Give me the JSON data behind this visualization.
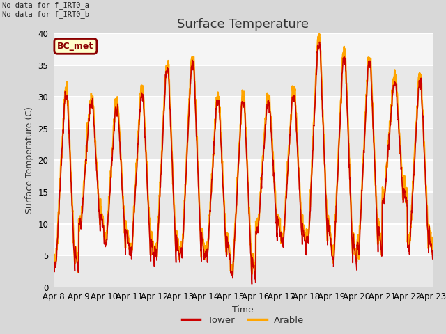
{
  "title": "Surface Temperature",
  "ylabel": "Surface Temperature (C)",
  "xlabel": "Time",
  "text_top_left": "No data for f_IRT0_a\nNo data for f_IRT0_b",
  "legend_label_box": "BC_met",
  "legend_entries": [
    {
      "label": "Tower",
      "color": "#cc0000"
    },
    {
      "label": "Arable",
      "color": "#ffa500"
    }
  ],
  "ylim": [
    0,
    40
  ],
  "yticks": [
    0,
    5,
    10,
    15,
    20,
    25,
    30,
    35,
    40
  ],
  "xtick_labels": [
    "Apr 8",
    "Apr 9",
    "Apr 10",
    "Apr 11",
    "Apr 12",
    "Apr 13",
    "Apr 14",
    "Apr 15",
    "Apr 16",
    "Apr 17",
    "Apr 18",
    "Apr 19",
    "Apr 20",
    "Apr 21",
    "Apr 22",
    "Apr 23"
  ],
  "n_days": 15,
  "background_color": "#d8d8d8",
  "plot_bg_light": "#f0f0f0",
  "plot_bg_dark": "#e0e0e0",
  "grid_color": "#ffffff",
  "title_fontsize": 13,
  "label_fontsize": 9,
  "tick_fontsize": 8.5,
  "day_maxes": [
    30,
    29,
    28,
    30,
    34,
    35,
    29,
    29,
    29,
    30,
    38,
    36,
    35,
    32,
    32
  ],
  "day_mins": [
    2,
    9,
    6,
    4,
    4,
    4,
    4,
    1,
    8,
    6,
    6,
    3,
    5,
    13,
    5
  ]
}
